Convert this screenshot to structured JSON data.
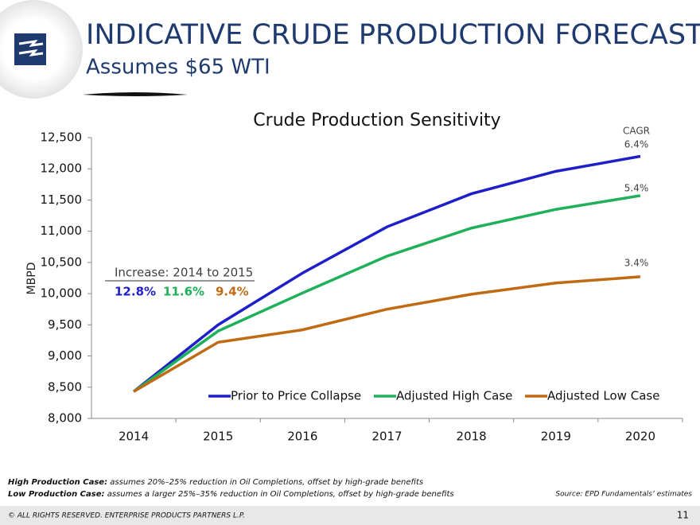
{
  "header": {
    "title": "INDICATIVE CRUDE PRODUCTION FORECASTS",
    "subtitle": "Assumes $65 WTI"
  },
  "chart_data": {
    "type": "line",
    "title": "Crude Production Sensitivity",
    "y_label": "MBPD",
    "categories": [
      "2014",
      "2015",
      "2016",
      "2017",
      "2018",
      "2019",
      "2020"
    ],
    "series": [
      {
        "name": "Prior to Price Collapse",
        "color": "#1f1fc8",
        "values": [
          8430,
          9500,
          10330,
          11070,
          11600,
          11960,
          12200
        ]
      },
      {
        "name": "Adjusted High Case",
        "color": "#1fb05a",
        "values": [
          8430,
          9400,
          10010,
          10600,
          11050,
          11350,
          11570
        ]
      },
      {
        "name": "Adjusted Low Case",
        "color": "#c06a14",
        "values": [
          8430,
          9220,
          9420,
          9750,
          9990,
          10170,
          10270
        ]
      }
    ],
    "ylim": [
      8000,
      12500
    ],
    "yticks": [
      {
        "value": 8000,
        "label": "8,000"
      },
      {
        "value": 8500,
        "label": "8,500"
      },
      {
        "value": 9000,
        "label": "9,000"
      },
      {
        "value": 9500,
        "label": "9,500"
      },
      {
        "value": 10000,
        "label": "10,000"
      },
      {
        "value": 10500,
        "label": "10,500"
      },
      {
        "value": 11000,
        "label": "11,000"
      },
      {
        "value": 11500,
        "label": "11,500"
      },
      {
        "value": 12000,
        "label": "12,000"
      },
      {
        "value": 12500,
        "label": "12,500"
      }
    ],
    "grid": false,
    "legend": "bottom",
    "annotations": [
      {
        "text": "CAGR",
        "color": "#404040"
      },
      {
        "text": "6.4%",
        "color": "#404040"
      },
      {
        "text": "5.4%",
        "color": "#404040"
      },
      {
        "text": "3.4%",
        "color": "#404040"
      },
      {
        "text": "Increase:  2014 to 2015",
        "color": "#404040"
      },
      {
        "text": "12.8%",
        "color": "#1f1fc8"
      },
      {
        "text": "11.6%",
        "color": "#1fb05a"
      },
      {
        "text": "9.4%",
        "color": "#c06a14"
      }
    ]
  },
  "notes": [
    {
      "label": "High Production Case:",
      "text": "assumes 20%–25% reduction in Oil Completions, offset by high-grade benefits"
    },
    {
      "label": "Low Production Case:",
      "text": "assumes a larger 25%–35% reduction in Oil Completions, offset by high-grade benefits"
    }
  ],
  "source": "Source:  EPD Fundamentals’ estimates",
  "footer": {
    "copyright": "© ALL RIGHTS RESERVED. ENTERPRISE PRODUCTS PARTNERS L.P.",
    "page": "11"
  }
}
